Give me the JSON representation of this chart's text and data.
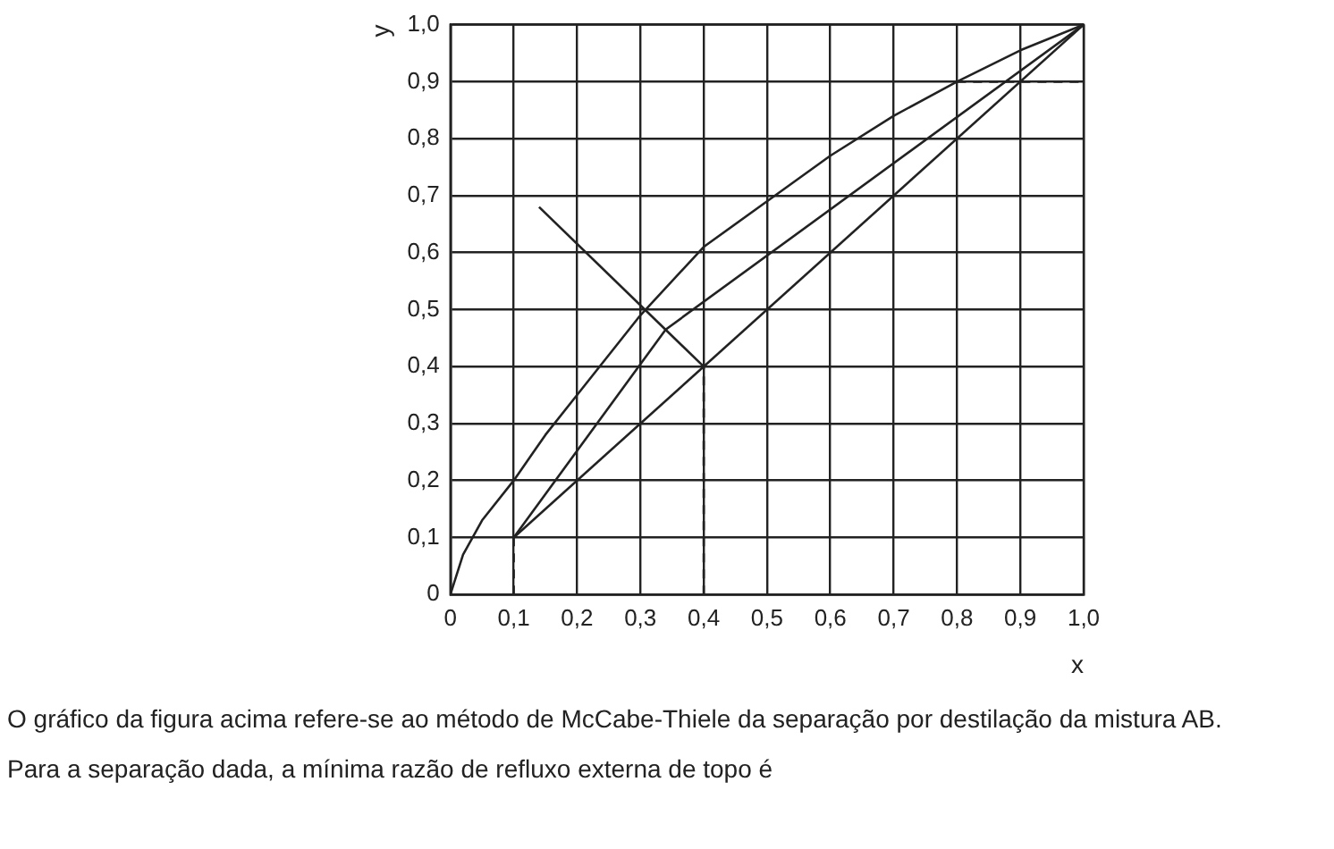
{
  "chart_data": {
    "type": "line",
    "xlabel": "x",
    "ylabel": "y",
    "xlim": [
      0,
      1
    ],
    "ylim": [
      0,
      1
    ],
    "xticks": [
      0,
      {
        "value": 0.1,
        "label": "0,1"
      },
      {
        "value": 0.2,
        "label": "0,2"
      },
      {
        "value": 0.3,
        "label": "0,3"
      },
      {
        "value": 0.4,
        "label": "0,4"
      },
      {
        "value": 0.5,
        "label": "0,5"
      },
      {
        "value": 0.6,
        "label": "0,6"
      },
      {
        "value": 0.7,
        "label": "0,7"
      },
      {
        "value": 0.8,
        "label": "0,8"
      },
      {
        "value": 0.9,
        "label": "0,9"
      },
      {
        "value": 1,
        "label": "1,0"
      }
    ],
    "yticks": [
      0,
      {
        "value": 0.1,
        "label": "0,1"
      },
      {
        "value": 0.2,
        "label": "0,2"
      },
      {
        "value": 0.3,
        "label": "0,3"
      },
      {
        "value": 0.4,
        "label": "0,4"
      },
      {
        "value": 0.5,
        "label": "0,5"
      },
      {
        "value": 0.6,
        "label": "0,6"
      },
      {
        "value": 0.7,
        "label": "0,7"
      },
      {
        "value": 0.8,
        "label": "0,8"
      },
      {
        "value": 0.9,
        "label": "0,9"
      },
      {
        "value": 1,
        "label": "1,0"
      }
    ],
    "grid": true,
    "legend": false,
    "marker": "none",
    "series": [
      {
        "color": "#222222",
        "line_style": "solid",
        "x": [
          0,
          0.02,
          0.05,
          0.1,
          0.15,
          0.2,
          0.3,
          0.4,
          0.5,
          0.6,
          0.7,
          0.8,
          0.9,
          1
        ],
        "values": [
          0,
          0.07,
          0.13,
          0.2,
          0.28,
          0.35,
          0.49,
          0.61,
          0.69,
          0.77,
          0.84,
          0.9,
          0.955,
          1
        ]
      },
      {
        "color": "#222222",
        "line_style": "solid",
        "x": [
          0.1,
          1
        ],
        "values": [
          0.1,
          1
        ]
      },
      {
        "color": "#222222",
        "line_style": "solid",
        "x": [
          0.1,
          0.34,
          1
        ],
        "values": [
          0.1,
          0.465,
          1
        ]
      },
      {
        "color": "#222222",
        "line_style": "solid",
        "x": [
          0.14,
          0.4
        ],
        "values": [
          0.68,
          0.4
        ]
      },
      {
        "color": "#222222",
        "line_style": "dashed",
        "x": [
          0.1,
          0.1
        ],
        "values": [
          0,
          0.1
        ]
      },
      {
        "color": "#222222",
        "line_style": "dashed",
        "x": [
          0.4,
          0.4
        ],
        "values": [
          0,
          0.4
        ]
      },
      {
        "color": "#222222",
        "line_style": "dashed",
        "x": [
          0.8,
          1
        ],
        "values": [
          0.9,
          0.9
        ]
      }
    ],
    "annotations": [
      "O gráfico da figura acima refere-se ao método de McCabe-Thiele da separação por destilação da mistura AB.",
      "Para a separação dada, a mínima razão de refluxo externa de topo é"
    ]
  }
}
